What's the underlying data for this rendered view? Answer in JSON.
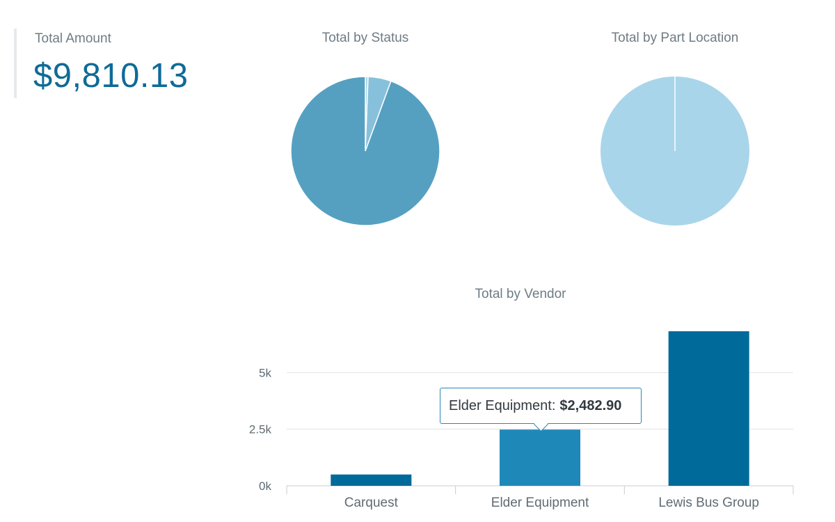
{
  "kpi": {
    "label": "Total Amount",
    "value": "$9,810.13",
    "accent": "#0e6b97"
  },
  "pies": [
    {
      "title": "Total by Status",
      "slices": [
        {
          "fraction": 0.006,
          "color": "#a9d5ea"
        },
        {
          "fraction": 0.05,
          "color": "#87c0db"
        },
        {
          "fraction": 0.944,
          "color": "#55a0c1"
        }
      ]
    },
    {
      "title": "Total by Part Location",
      "slices": [
        {
          "fraction": 1.0,
          "color": "#a9d5ea"
        }
      ]
    }
  ],
  "tooltip": {
    "label": "Elder Equipment:",
    "value": "$2,482.90"
  },
  "chart_data": {
    "type": "bar",
    "title": "Total by Vendor",
    "categories": [
      "Carquest",
      "Elder Equipment",
      "Lewis Bus Group"
    ],
    "values": [
      500,
      2482.9,
      6827.23
    ],
    "ylim": [
      0,
      7500
    ],
    "yticks": [
      0,
      2500,
      5000
    ],
    "ytick_labels": [
      "0k",
      "2.5k",
      "5k"
    ],
    "grid": true,
    "colors": [
      "#006a9b",
      "#1e88b9",
      "#006a9b"
    ]
  }
}
